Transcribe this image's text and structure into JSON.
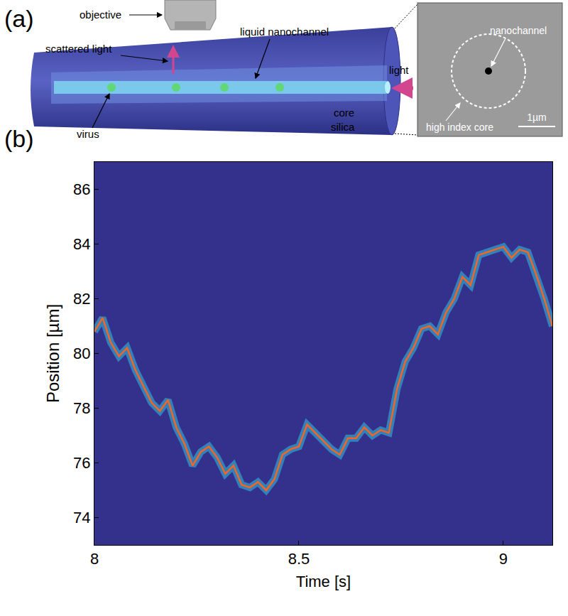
{
  "diagram": {
    "label": "(a)",
    "fiber_labels": {
      "objective": "objective",
      "scattered_light": "scattered light",
      "nanochannel": "liquid nanochannel",
      "virus": "virus",
      "core": "core",
      "cladding": "silica",
      "light": "light"
    },
    "inset": {
      "nanochannel": "nanochannel",
      "core": "high index core",
      "scale_bar": "1µm"
    }
  },
  "chart_data": {
    "label": "(b)",
    "type": "line",
    "x_label": "Time [s]",
    "y_label": "Position [µm]",
    "x": [
      8.0,
      8.02,
      8.04,
      8.06,
      8.08,
      8.1,
      8.12,
      8.14,
      8.16,
      8.18,
      8.2,
      8.22,
      8.24,
      8.26,
      8.28,
      8.3,
      8.32,
      8.34,
      8.36,
      8.38,
      8.4,
      8.42,
      8.44,
      8.46,
      8.48,
      8.5,
      8.52,
      8.54,
      8.56,
      8.58,
      8.6,
      8.62,
      8.64,
      8.66,
      8.68,
      8.7,
      8.72,
      8.74,
      8.76,
      8.78,
      8.8,
      8.82,
      8.84,
      8.86,
      8.88,
      8.9,
      8.92,
      8.94,
      8.96,
      8.98,
      9.0,
      9.02,
      9.04,
      9.06,
      9.08,
      9.1,
      9.12
    ],
    "series": [
      {
        "color": "#f26522",
        "values": [
          80.8,
          81.3,
          80.4,
          79.9,
          80.2,
          79.4,
          78.8,
          78.2,
          77.9,
          78.3,
          77.3,
          76.7,
          75.9,
          76.4,
          76.6,
          76.2,
          75.6,
          75.9,
          75.2,
          75.1,
          75.3,
          75.0,
          75.4,
          76.3,
          76.5,
          76.6,
          77.4,
          77.1,
          76.8,
          76.5,
          76.3,
          76.9,
          76.9,
          77.3,
          77.0,
          77.2,
          77.1,
          78.7,
          79.7,
          80.2,
          80.9,
          81.0,
          80.7,
          81.5,
          82.0,
          82.8,
          82.5,
          83.6,
          83.7,
          83.8,
          83.9,
          83.5,
          83.8,
          83.7,
          82.9,
          82.0,
          81.0
        ]
      }
    ],
    "xlim": [
      8,
      9.12
    ],
    "xticks": [
      8,
      8.5,
      9
    ],
    "ylim": [
      73,
      87
    ],
    "yticks": [
      74,
      76,
      78,
      80,
      82,
      84,
      86
    ],
    "grid": false
  }
}
